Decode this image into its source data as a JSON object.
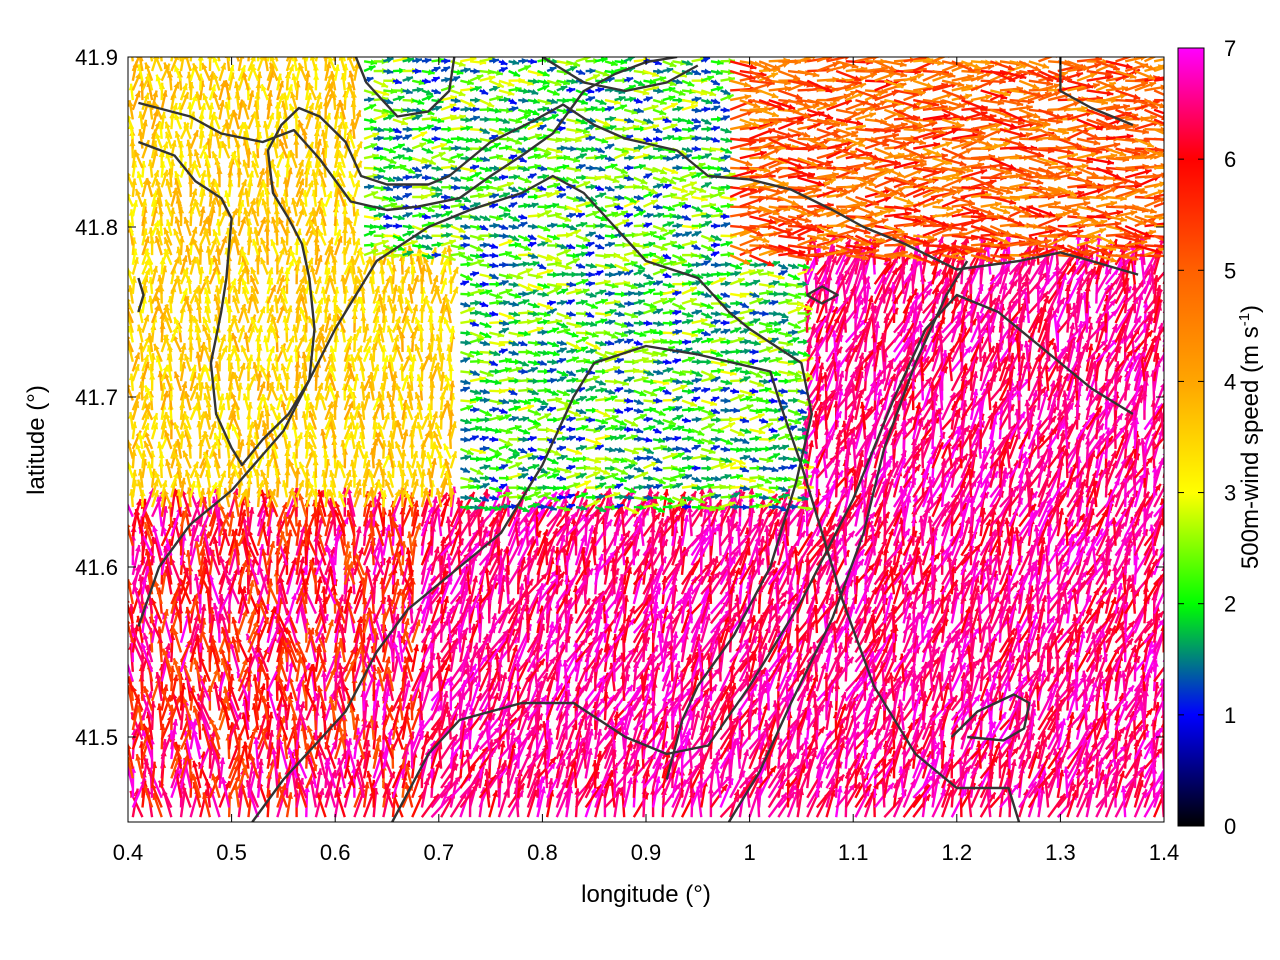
{
  "chart_data": {
    "type": "vector-field",
    "xlabel": "longitude (°)",
    "ylabel": "latitude (°)",
    "colorbar_label": "500m-wind speed (m s^-1)",
    "colorbar_label_parts": {
      "main": "500m-wind speed (m s",
      "sup": "-1",
      "close": ")"
    },
    "xlim": [
      0.4,
      1.4
    ],
    "ylim": [
      41.45,
      41.9
    ],
    "clim": [
      0,
      7
    ],
    "x_ticks": [
      "0.4",
      "0.5",
      "0.6",
      "0.7",
      "0.8",
      "0.9",
      "1",
      "1.1",
      "1.2",
      "1.3",
      "1.4"
    ],
    "y_ticks": [
      "41.5",
      "41.6",
      "41.7",
      "41.8",
      "41.9"
    ],
    "colorbar_ticks": [
      "0",
      "1",
      "2",
      "3",
      "4",
      "5",
      "6",
      "7"
    ],
    "colormap": [
      "#000000",
      "#0000ff",
      "#00ff00",
      "#ffff00",
      "#ffa500",
      "#ff6000",
      "#ff0000",
      "#ff00ff"
    ],
    "grid": false,
    "contour_color": "#333333",
    "wind_regions": [
      {
        "region": "northwest",
        "speed_range": [
          3,
          4
        ],
        "direction": "north"
      },
      {
        "region": "north-center",
        "speed_range": [
          1,
          3
        ],
        "direction": "east"
      },
      {
        "region": "northeast",
        "speed_range": [
          4,
          6
        ],
        "direction": "east"
      },
      {
        "region": "center",
        "speed_range": [
          1,
          3
        ],
        "direction": "east"
      },
      {
        "region": "southwest",
        "speed_range": [
          5,
          7
        ],
        "direction": "north"
      },
      {
        "region": "south-center",
        "speed_range": [
          6,
          7
        ],
        "direction": "north-northeast"
      },
      {
        "region": "southeast",
        "speed_range": [
          6,
          7
        ],
        "direction": "north-northeast"
      }
    ],
    "contours": [
      [
        [
          0.41,
          41.873
        ],
        [
          0.46,
          41.865
        ],
        [
          0.49,
          41.855
        ],
        [
          0.53,
          41.85
        ],
        [
          0.56,
          41.857
        ],
        [
          0.585,
          41.84
        ],
        [
          0.615,
          41.815
        ],
        [
          0.65,
          41.81
        ],
        [
          0.68,
          41.812
        ],
        [
          0.72,
          41.817
        ],
        [
          0.75,
          41.83
        ],
        [
          0.78,
          41.842
        ],
        [
          0.81,
          41.855
        ],
        [
          0.84,
          41.88
        ],
        [
          0.87,
          41.89
        ],
        [
          0.9,
          41.897
        ],
        [
          0.93,
          41.9
        ]
      ],
      [
        [
          0.41,
          41.85
        ],
        [
          0.445,
          41.842
        ],
        [
          0.465,
          41.827
        ],
        [
          0.49,
          41.817
        ],
        [
          0.5,
          41.805
        ],
        [
          0.495,
          41.77
        ],
        [
          0.49,
          41.75
        ],
        [
          0.48,
          41.72
        ],
        [
          0.485,
          41.69
        ],
        [
          0.5,
          41.67
        ],
        [
          0.51,
          41.66
        ],
        [
          0.53,
          41.675
        ],
        [
          0.555,
          41.69
        ],
        [
          0.575,
          41.71
        ],
        [
          0.58,
          41.74
        ],
        [
          0.575,
          41.77
        ],
        [
          0.568,
          41.79
        ],
        [
          0.555,
          41.805
        ],
        [
          0.54,
          41.82
        ],
        [
          0.535,
          41.845
        ],
        [
          0.548,
          41.86
        ],
        [
          0.565,
          41.87
        ],
        [
          0.585,
          41.865
        ],
        [
          0.61,
          41.85
        ],
        [
          0.625,
          41.83
        ],
        [
          0.65,
          41.825
        ],
        [
          0.69,
          41.825
        ],
        [
          0.71,
          41.83
        ],
        [
          0.75,
          41.85
        ],
        [
          0.79,
          41.862
        ],
        [
          0.82,
          41.872
        ],
        [
          0.85,
          41.86
        ],
        [
          0.88,
          41.852
        ],
        [
          0.93,
          41.845
        ],
        [
          0.96,
          41.83
        ],
        [
          1.0,
          41.828
        ],
        [
          1.04,
          41.822
        ],
        [
          1.08,
          41.81
        ],
        [
          1.11,
          41.8
        ],
        [
          1.15,
          41.79
        ],
        [
          1.2,
          41.775
        ],
        [
          1.26,
          41.78
        ],
        [
          1.3,
          41.785
        ],
        [
          1.33,
          41.78
        ],
        [
          1.375,
          41.772
        ]
      ],
      [
        [
          0.41,
          41.565
        ],
        [
          0.43,
          41.6
        ],
        [
          0.46,
          41.625
        ],
        [
          0.5,
          41.645
        ],
        [
          0.55,
          41.68
        ],
        [
          0.6,
          41.74
        ],
        [
          0.64,
          41.78
        ],
        [
          0.69,
          41.8
        ],
        [
          0.73,
          41.81
        ],
        [
          0.78,
          41.82
        ],
        [
          0.81,
          41.83
        ],
        [
          0.84,
          41.82
        ],
        [
          0.87,
          41.8
        ],
        [
          0.9,
          41.78
        ],
        [
          0.95,
          41.77
        ],
        [
          0.98,
          41.75
        ],
        [
          1.0,
          41.74
        ],
        [
          1.05,
          41.72
        ],
        [
          1.06,
          41.69
        ],
        [
          1.045,
          41.65
        ],
        [
          1.02,
          41.6
        ],
        [
          0.985,
          41.56
        ],
        [
          0.95,
          41.53
        ],
        [
          0.935,
          41.51
        ],
        [
          0.92,
          41.475
        ]
      ],
      [
        [
          0.52,
          41.45
        ],
        [
          0.55,
          41.475
        ],
        [
          0.58,
          41.495
        ],
        [
          0.61,
          41.515
        ],
        [
          0.64,
          41.55
        ],
        [
          0.67,
          41.575
        ],
        [
          0.72,
          41.6
        ],
        [
          0.76,
          41.62
        ],
        [
          0.8,
          41.66
        ],
        [
          0.83,
          41.7
        ],
        [
          0.85,
          41.72
        ],
        [
          0.9,
          41.73
        ],
        [
          0.95,
          41.725
        ],
        [
          0.985,
          41.72
        ],
        [
          1.02,
          41.715
        ],
        [
          1.03,
          41.695
        ],
        [
          1.05,
          41.66
        ],
        [
          1.07,
          41.62
        ],
        [
          1.09,
          41.58
        ],
        [
          1.12,
          41.53
        ],
        [
          1.16,
          41.49
        ],
        [
          1.2,
          41.47
        ],
        [
          1.25,
          41.47
        ],
        [
          1.26,
          41.45
        ]
      ],
      [
        [
          0.655,
          41.45
        ],
        [
          0.69,
          41.49
        ],
        [
          0.72,
          41.51
        ],
        [
          0.75,
          41.515
        ],
        [
          0.78,
          41.52
        ],
        [
          0.83,
          41.52
        ],
        [
          0.88,
          41.5
        ],
        [
          0.92,
          41.49
        ],
        [
          0.96,
          41.495
        ],
        [
          1.0,
          41.53
        ],
        [
          1.05,
          41.58
        ],
        [
          1.1,
          41.64
        ],
        [
          1.14,
          41.7
        ],
        [
          1.17,
          41.74
        ],
        [
          1.2,
          41.76
        ],
        [
          1.24,
          41.75
        ],
        [
          1.28,
          41.73
        ],
        [
          1.33,
          41.705
        ],
        [
          1.37,
          41.69
        ]
      ],
      [
        [
          0.98,
          41.45
        ],
        [
          1.01,
          41.48
        ],
        [
          1.04,
          41.52
        ],
        [
          1.08,
          41.57
        ],
        [
          1.11,
          41.62
        ],
        [
          1.13,
          41.67
        ],
        [
          1.16,
          41.72
        ],
        [
          1.19,
          41.76
        ],
        [
          1.21,
          41.78
        ]
      ],
      [
        [
          1.195,
          41.5
        ],
        [
          1.22,
          41.515
        ],
        [
          1.255,
          41.525
        ],
        [
          1.27,
          41.52
        ],
        [
          1.265,
          41.505
        ],
        [
          1.245,
          41.498
        ],
        [
          1.21,
          41.5
        ]
      ],
      [
        [
          1.055,
          41.76
        ],
        [
          1.07,
          41.765
        ],
        [
          1.085,
          41.76
        ],
        [
          1.07,
          41.755
        ],
        [
          1.055,
          41.76
        ]
      ],
      [
        [
          0.41,
          41.77
        ],
        [
          0.415,
          41.76
        ],
        [
          0.41,
          41.75
        ]
      ],
      [
        [
          0.62,
          41.9
        ],
        [
          0.63,
          41.885
        ],
        [
          0.66,
          41.865
        ],
        [
          0.69,
          41.868
        ],
        [
          0.71,
          41.88
        ],
        [
          0.715,
          41.9
        ]
      ],
      [
        [
          0.8,
          41.9
        ],
        [
          0.84,
          41.885
        ],
        [
          0.88,
          41.88
        ],
        [
          0.92,
          41.885
        ],
        [
          0.95,
          41.895
        ]
      ],
      [
        [
          1.37,
          41.86
        ],
        [
          1.33,
          41.87
        ],
        [
          1.3,
          41.88
        ],
        [
          1.3,
          41.9
        ]
      ]
    ]
  }
}
